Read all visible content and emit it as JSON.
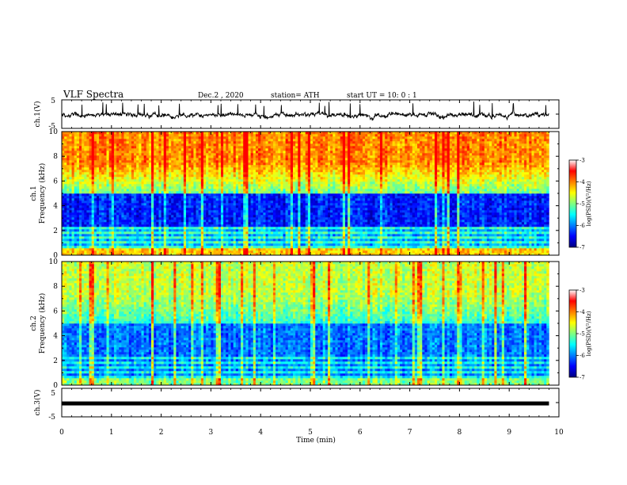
{
  "header": {
    "title": "VLF Spectra",
    "date": "Dec.2 , 2020",
    "station": "station= ATH",
    "start": "start UT = 10: 0 : 1"
  },
  "colors": {
    "colormap": [
      "#00007f",
      "#0000ff",
      "#0080ff",
      "#00ffff",
      "#80ff80",
      "#ffff00",
      "#ff8000",
      "#ff0000",
      "#ffffff"
    ],
    "trace": "#000000"
  },
  "chart_data": [
    {
      "type": "line",
      "name": "ch1-waveform",
      "ylabel": "ch.1(V)",
      "ylim": [
        -5,
        5
      ],
      "yticks": [
        "5",
        "-5"
      ],
      "xlim": [
        0,
        10
      ],
      "x_end": 9.8,
      "description_values": {
        "typical_min": -1.5,
        "typical_max": 1.0,
        "spike_max": 4.5
      }
    },
    {
      "type": "heatmap",
      "name": "ch1-spectrogram",
      "ylabel": "ch.1\nFrequency (kHz)",
      "ylim": [
        0,
        10
      ],
      "yticks": [
        "0",
        "2",
        "4",
        "6",
        "8",
        "10"
      ],
      "xlim": [
        0,
        10
      ],
      "x_end": 9.8,
      "colorbar": {
        "label": "log(PSD)(V²/Hz)",
        "range": [
          -7,
          -3
        ],
        "ticks": [
          "-3",
          "-4",
          "-5",
          "-6",
          "-7"
        ]
      },
      "profile": {
        "high_band_khz": [
          5,
          10
        ],
        "high_band_level": -3.6,
        "low_band_khz": [
          2.3,
          5
        ],
        "low_band_level": -6.3
      }
    },
    {
      "type": "heatmap",
      "name": "ch2-spectrogram",
      "ylabel": "ch.2\nFrequency (kHz)",
      "ylim": [
        0,
        10
      ],
      "yticks": [
        "0",
        "2",
        "4",
        "6",
        "8",
        "10"
      ],
      "xlim": [
        0,
        10
      ],
      "x_end": 9.8,
      "colorbar": {
        "label": "log(PSD)(V²/Hz)",
        "range": [
          -7,
          -3
        ],
        "ticks": [
          "-3",
          "-4",
          "-5",
          "-6",
          "-7"
        ]
      },
      "profile": {
        "high_band_khz": [
          5,
          10
        ],
        "high_band_level": -4.4,
        "low_band_khz": [
          2.3,
          4.5
        ],
        "low_band_level": -5.9
      }
    },
    {
      "type": "line",
      "name": "ch3-waveform",
      "ylabel": "ch.3(V)",
      "ylim": [
        -5,
        5
      ],
      "yticks": [
        "5",
        "0",
        "-5"
      ],
      "xlim": [
        0,
        10
      ],
      "x_end": 9.8,
      "level": -0.3
    }
  ],
  "xaxis": {
    "label": "Time (min)",
    "ticks": [
      "0",
      "1",
      "2",
      "3",
      "4",
      "5",
      "6",
      "7",
      "8",
      "9",
      "10"
    ]
  }
}
